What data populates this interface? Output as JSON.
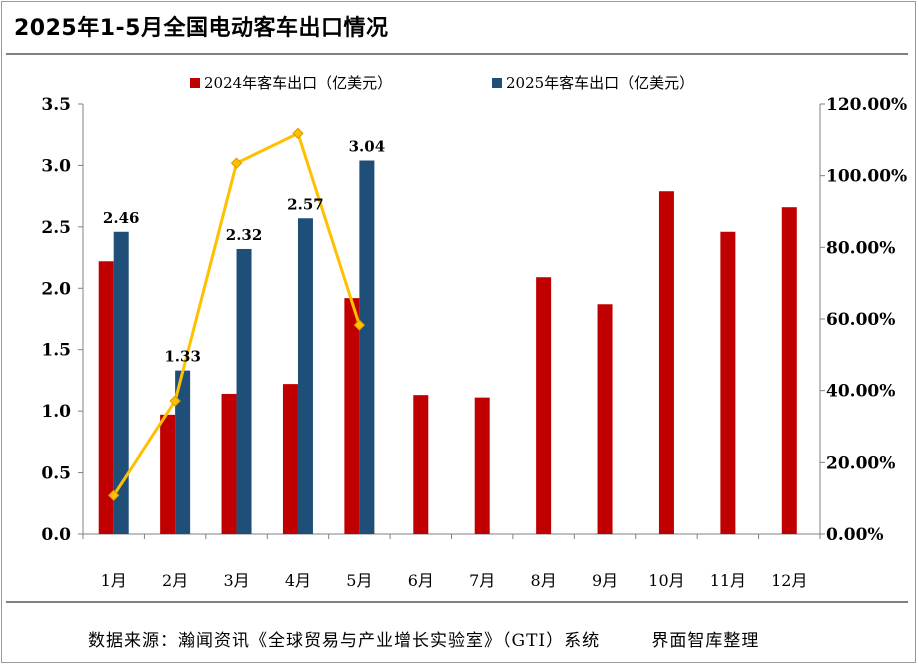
{
  "title": "2025年1-5月全国电动客车出口情况",
  "source": "数据来源：瀚闻资讯《全球贸易与产业增长实验室》（GTI）系统        界面智库整理",
  "colors": {
    "series_2024": "#c00000",
    "series_2025": "#1f4e79",
    "growth_line": "#ffc000"
  },
  "chart_data": {
    "type": "bar",
    "title": "2025年1-5月全国电动客车出口情况",
    "categories": [
      "1月",
      "2月",
      "3月",
      "4月",
      "5月",
      "6月",
      "7月",
      "8月",
      "9月",
      "10月",
      "11月",
      "12月"
    ],
    "series": [
      {
        "name": "2024年客车出口（亿美元）",
        "axis": "left",
        "values": [
          2.22,
          0.97,
          1.14,
          1.22,
          1.92,
          1.13,
          1.11,
          2.09,
          1.87,
          2.79,
          2.46,
          2.66
        ]
      },
      {
        "name": "2025年客车出口（亿美元）",
        "axis": "left",
        "values": [
          2.46,
          1.33,
          2.32,
          2.57,
          3.04,
          null,
          null,
          null,
          null,
          null,
          null,
          null
        ],
        "data_labels": [
          "2.46",
          "1.33",
          "2.32",
          "2.57",
          "3.04"
        ]
      },
      {
        "type": "line",
        "axis": "right",
        "values": [
          10.8,
          37.1,
          103.5,
          111.8,
          58.3,
          null,
          null,
          null,
          null,
          null,
          null,
          null
        ]
      }
    ],
    "y_left": {
      "ylim": [
        0,
        3.5
      ],
      "ticks": [
        "0.0",
        "0.5",
        "1.0",
        "1.5",
        "2.0",
        "2.5",
        "3.0",
        "3.5"
      ]
    },
    "y_right": {
      "ylim": [
        0,
        120
      ],
      "unit": "%",
      "ticks": [
        "0.00%",
        "20.00%",
        "40.00%",
        "60.00%",
        "80.00%",
        "100.00%",
        "120.00%"
      ]
    },
    "grid": false,
    "legend": "top"
  }
}
